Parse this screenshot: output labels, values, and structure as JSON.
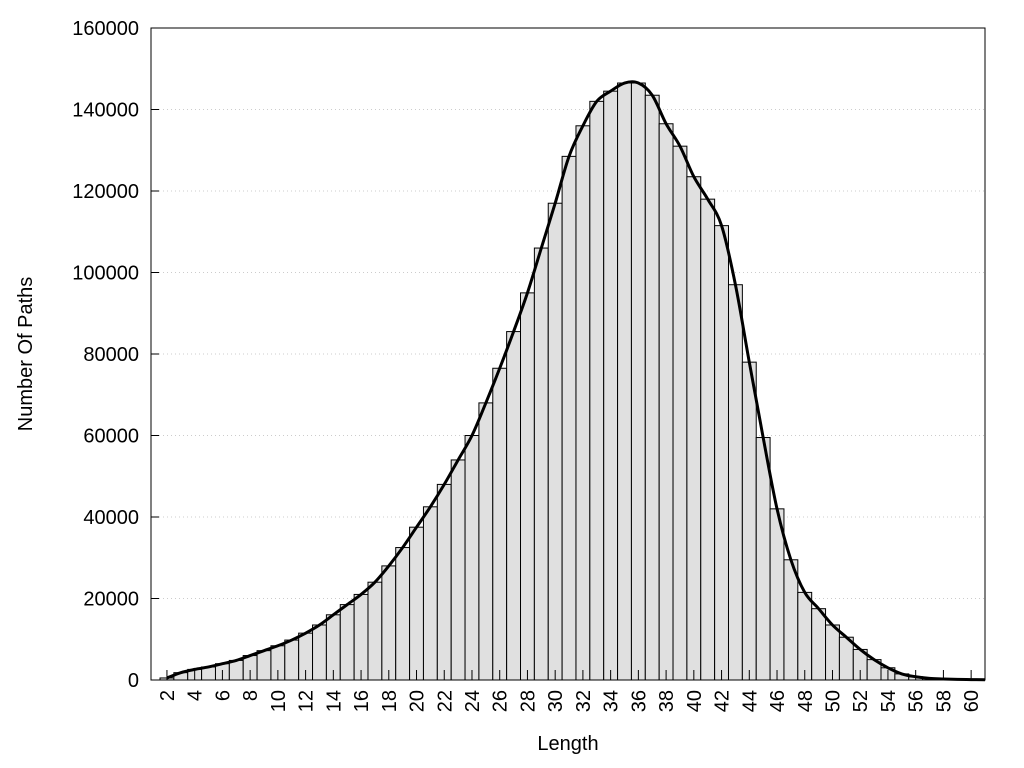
{
  "chart_data": {
    "type": "bar",
    "x_label": "Length",
    "y_label": "Number Of Paths",
    "x": [
      2,
      3,
      4,
      5,
      6,
      7,
      8,
      9,
      10,
      11,
      12,
      13,
      14,
      15,
      16,
      17,
      18,
      19,
      20,
      21,
      22,
      23,
      24,
      25,
      26,
      27,
      28,
      29,
      30,
      31,
      32,
      33,
      34,
      35,
      36,
      37,
      38,
      39,
      40,
      41,
      42,
      43,
      44,
      45,
      46,
      47,
      48,
      49,
      50,
      51,
      52,
      53,
      54,
      55,
      56,
      57,
      58,
      59,
      60,
      61
    ],
    "values": [
      500,
      1800,
      2600,
      3200,
      4000,
      4800,
      6000,
      7200,
      8400,
      9800,
      11500,
      13500,
      16000,
      18500,
      21000,
      24000,
      28000,
      32500,
      37500,
      42500,
      48000,
      54000,
      60000,
      68000,
      76500,
      85500,
      95000,
      106000,
      117000,
      128500,
      136000,
      142000,
      144500,
      146500,
      146500,
      143500,
      136500,
      131000,
      123500,
      118000,
      111500,
      97000,
      78000,
      59500,
      42000,
      29500,
      21500,
      17500,
      13500,
      10500,
      7500,
      5000,
      3000,
      1500,
      800,
      400,
      250,
      150,
      100,
      50
    ],
    "color": "#e0e0e0",
    "line_color": "#000000",
    "smooth_line": true,
    "xlim": [
      0.85,
      61
    ],
    "xticks": [
      2,
      4,
      6,
      8,
      10,
      12,
      14,
      16,
      18,
      20,
      22,
      24,
      26,
      28,
      30,
      32,
      34,
      36,
      38,
      40,
      42,
      44,
      46,
      48,
      50,
      52,
      54,
      56,
      58,
      60
    ],
    "ylim": [
      0,
      160000
    ],
    "yticks": [
      0,
      20000,
      40000,
      60000,
      80000,
      100000,
      120000,
      140000,
      160000
    ],
    "grid": true
  }
}
